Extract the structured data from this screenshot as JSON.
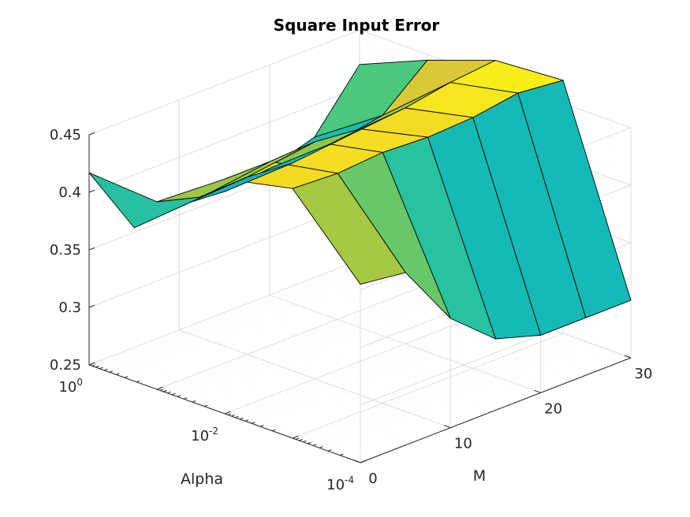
{
  "chart_data": {
    "type": "surface",
    "title": "Square Input Error",
    "xlabel": "Alpha",
    "ylabel": "M",
    "zlabel": "",
    "x_scale": "log",
    "x_ticks": [
      {
        "value": 1,
        "base": "10",
        "exp": "0"
      },
      {
        "value": 0.01,
        "base": "10",
        "exp": "-2"
      },
      {
        "value": 0.0001,
        "base": "10",
        "exp": "-4"
      }
    ],
    "y_ticks": [
      "0",
      "10",
      "20",
      "30"
    ],
    "z_ticks": [
      "0.25",
      "0.3",
      "0.35",
      "0.4",
      "0.45"
    ],
    "zlim": [
      0.25,
      0.45
    ],
    "grid": true,
    "colormap": "parula",
    "alpha": [
      1,
      0.1,
      0.01,
      0.001,
      0.0001
    ],
    "m": [
      0,
      5,
      10,
      15,
      20,
      25,
      30
    ],
    "z": [
      [
        0.417,
        0.354,
        0.358,
        0.355,
        0.36,
        0.372,
        0.42
      ],
      [
        0.413,
        0.402,
        0.404,
        0.401,
        0.405,
        0.412,
        0.445
      ],
      [
        0.454,
        0.454,
        0.456,
        0.452,
        0.455,
        0.462,
        0.466
      ],
      [
        0.467,
        0.465,
        0.468,
        0.466,
        0.468,
        0.474,
        0.47
      ],
      [
        0.405,
        0.4,
        0.345,
        0.312,
        0.3,
        0.3,
        0.3
      ]
    ]
  }
}
